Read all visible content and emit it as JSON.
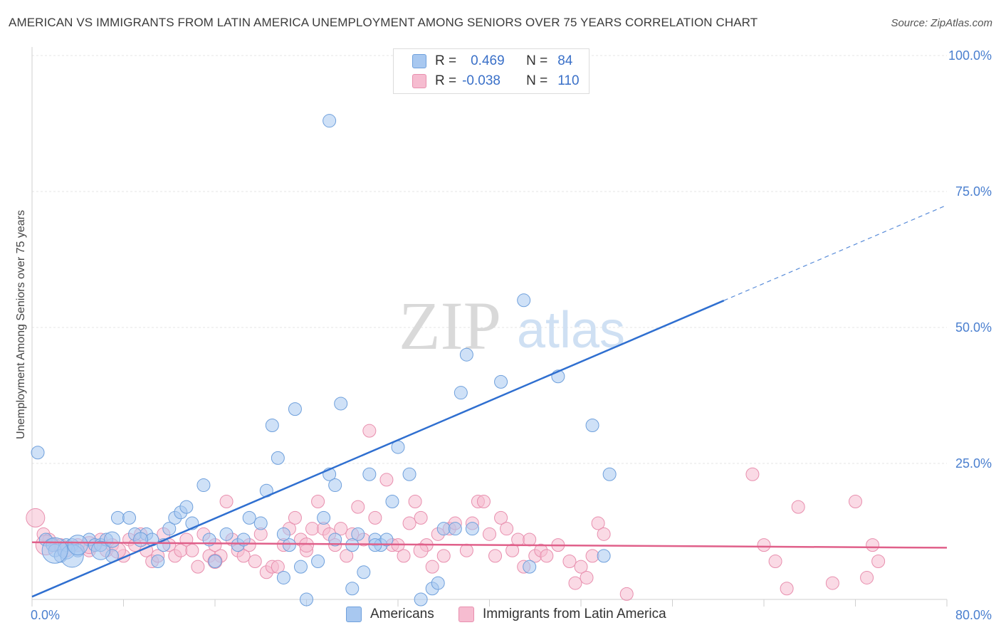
{
  "header": {
    "title": "AMERICAN VS IMMIGRANTS FROM LATIN AMERICA UNEMPLOYMENT AMONG SENIORS OVER 75 YEARS CORRELATION CHART",
    "source": "Source: ZipAtlas.com"
  },
  "watermark": {
    "zip": "ZIP",
    "atlas": "atlas"
  },
  "legend": {
    "r_label": "R =",
    "n_label": "N =",
    "americans": {
      "r": "0.469",
      "n": "84"
    },
    "immigrants": {
      "r": "-0.038",
      "n": "110"
    }
  },
  "colors": {
    "americans_fill": "#a8c8f0",
    "americans_stroke": "#6fa0dc",
    "americans_line": "#2f6fd0",
    "immigrants_fill": "#f6bcd0",
    "immigrants_stroke": "#e88fae",
    "immigrants_line": "#e0608a"
  },
  "chart_data": {
    "type": "scatter",
    "title": "AMERICAN VS IMMIGRANTS FROM LATIN AMERICA UNEMPLOYMENT AMONG SENIORS OVER 75 YEARS CORRELATION CHART",
    "xlabel": "",
    "ylabel": "Unemployment Among Seniors over 75 years",
    "xlim": [
      0,
      80
    ],
    "ylim": [
      0,
      100
    ],
    "x_tick_labels": [
      "0.0%",
      "80.0%"
    ],
    "y_ticks": [
      25,
      50,
      75,
      100
    ],
    "y_tick_labels": [
      "25.0%",
      "50.0%",
      "75.0%",
      "100.0%"
    ],
    "legend_labels": [
      "Americans",
      "Immigrants from Latin America"
    ],
    "series": [
      {
        "name": "Americans",
        "trend": {
          "x0": 0,
          "y0": 0.5,
          "x1": 80,
          "y1": 72.5,
          "solid_until_x": 60.5
        },
        "points": [
          [
            0.5,
            27
          ],
          [
            1.2,
            11
          ],
          [
            1.8,
            10
          ],
          [
            2.0,
            9
          ],
          [
            2.5,
            8
          ],
          [
            3,
            10
          ],
          [
            3.5,
            10
          ],
          [
            4,
            9
          ],
          [
            5,
            11
          ],
          [
            5.5,
            10
          ],
          [
            6,
            10
          ],
          [
            6.5,
            11
          ],
          [
            7,
            8
          ],
          [
            7.5,
            15
          ],
          [
            8.5,
            15
          ],
          [
            9,
            12
          ],
          [
            10,
            12
          ],
          [
            10.5,
            11
          ],
          [
            11,
            7
          ],
          [
            11.5,
            10
          ],
          [
            12,
            13
          ],
          [
            12.5,
            15
          ],
          [
            13,
            16
          ],
          [
            13.5,
            17
          ],
          [
            14,
            14
          ],
          [
            15,
            21
          ],
          [
            16,
            7
          ],
          [
            17,
            12
          ],
          [
            18,
            10
          ],
          [
            19,
            15
          ],
          [
            20,
            14
          ],
          [
            20.5,
            20
          ],
          [
            21,
            32
          ],
          [
            21.5,
            26
          ],
          [
            22,
            4
          ],
          [
            22.5,
            10
          ],
          [
            23,
            35
          ],
          [
            23.5,
            6
          ],
          [
            24,
            0
          ],
          [
            25,
            7
          ],
          [
            25.5,
            15
          ],
          [
            26,
            23
          ],
          [
            26.5,
            21
          ],
          [
            27,
            36
          ],
          [
            28,
            2
          ],
          [
            28.5,
            12
          ],
          [
            29,
            5
          ],
          [
            29.5,
            23
          ],
          [
            30,
            11
          ],
          [
            30.5,
            10
          ],
          [
            31,
            11
          ],
          [
            31.5,
            18
          ],
          [
            32,
            28
          ],
          [
            33,
            23
          ],
          [
            34,
            0
          ],
          [
            35,
            2
          ],
          [
            35.5,
            3
          ],
          [
            36,
            13
          ],
          [
            37,
            13
          ],
          [
            37.5,
            38
          ],
          [
            38,
            45
          ],
          [
            38.5,
            13
          ],
          [
            41,
            40
          ],
          [
            43,
            55
          ],
          [
            43.5,
            6
          ],
          [
            46,
            41
          ],
          [
            49,
            32
          ],
          [
            50,
            8
          ],
          [
            50.5,
            23
          ],
          [
            26,
            88
          ],
          [
            34,
            96
          ],
          [
            3,
            9
          ],
          [
            3.5,
            8
          ],
          [
            4,
            10
          ],
          [
            2,
            9
          ],
          [
            6,
            9
          ],
          [
            7,
            11
          ],
          [
            9.5,
            11
          ],
          [
            15.5,
            11
          ],
          [
            18.5,
            11
          ],
          [
            22,
            12
          ],
          [
            26.5,
            11
          ],
          [
            28,
            10
          ],
          [
            30,
            10
          ]
        ],
        "sizes": [
          9,
          9,
          9,
          9,
          9,
          9,
          9,
          9,
          9,
          9,
          9,
          9,
          9,
          9,
          9,
          9,
          9,
          9,
          9,
          9,
          9,
          9,
          9,
          9,
          9,
          9,
          9,
          9,
          9,
          9,
          9,
          9,
          9,
          9,
          9,
          9,
          9,
          9,
          9,
          9,
          9,
          9,
          9,
          9,
          9,
          9,
          9,
          9,
          9,
          9,
          9,
          9,
          9,
          9,
          9,
          9,
          9,
          9,
          9,
          9,
          9,
          9,
          9,
          9,
          9,
          9,
          9,
          9,
          9,
          9,
          9,
          12,
          16,
          14,
          18,
          13,
          11,
          10,
          9,
          9,
          9,
          9,
          9,
          9
        ]
      },
      {
        "name": "Immigrants from Latin America",
        "trend": {
          "x0": 0,
          "y0": 10.5,
          "x1": 80,
          "y1": 9.5
        },
        "points": [
          [
            0.3,
            15
          ],
          [
            1,
            12
          ],
          [
            1.5,
            11
          ],
          [
            2,
            10
          ],
          [
            2.5,
            10
          ],
          [
            3,
            9
          ],
          [
            4,
            10
          ],
          [
            5,
            9
          ],
          [
            5.5,
            10
          ],
          [
            6,
            11
          ],
          [
            6.5,
            9
          ],
          [
            7,
            10
          ],
          [
            8,
            8
          ],
          [
            8.5,
            11
          ],
          [
            9,
            10
          ],
          [
            9.5,
            12
          ],
          [
            10,
            9
          ],
          [
            10.5,
            7
          ],
          [
            11,
            8
          ],
          [
            11.5,
            12
          ],
          [
            12,
            10
          ],
          [
            12.5,
            8
          ],
          [
            13,
            9
          ],
          [
            13.5,
            11
          ],
          [
            14,
            9
          ],
          [
            14.5,
            6
          ],
          [
            15,
            12
          ],
          [
            15.5,
            8
          ],
          [
            16,
            10
          ],
          [
            16.5,
            8
          ],
          [
            17,
            18
          ],
          [
            17.5,
            11
          ],
          [
            18,
            9
          ],
          [
            18.5,
            8
          ],
          [
            19,
            10
          ],
          [
            19.5,
            7
          ],
          [
            20,
            12
          ],
          [
            20.5,
            5
          ],
          [
            21,
            6
          ],
          [
            21.5,
            6
          ],
          [
            22,
            10
          ],
          [
            22.5,
            13
          ],
          [
            23,
            15
          ],
          [
            23.5,
            11
          ],
          [
            24,
            9
          ],
          [
            24.5,
            13
          ],
          [
            25,
            18
          ],
          [
            25.5,
            13
          ],
          [
            26,
            12
          ],
          [
            26.5,
            10
          ],
          [
            27,
            13
          ],
          [
            27.5,
            8
          ],
          [
            28,
            12
          ],
          [
            28.5,
            17
          ],
          [
            29,
            11
          ],
          [
            29.5,
            31
          ],
          [
            30,
            15
          ],
          [
            31,
            22
          ],
          [
            31.5,
            10
          ],
          [
            32,
            10
          ],
          [
            32.5,
            8
          ],
          [
            33,
            14
          ],
          [
            33.5,
            18
          ],
          [
            34,
            15
          ],
          [
            34.5,
            10
          ],
          [
            35,
            6
          ],
          [
            35.5,
            12
          ],
          [
            36,
            8
          ],
          [
            36.5,
            13
          ],
          [
            37,
            14
          ],
          [
            38,
            9
          ],
          [
            38.5,
            14
          ],
          [
            39,
            18
          ],
          [
            39.5,
            18
          ],
          [
            40,
            12
          ],
          [
            40.5,
            8
          ],
          [
            41,
            15
          ],
          [
            41.5,
            13
          ],
          [
            42,
            9
          ],
          [
            42.5,
            11
          ],
          [
            43,
            6
          ],
          [
            43.5,
            11
          ],
          [
            44,
            8
          ],
          [
            44.5,
            9
          ],
          [
            45,
            8
          ],
          [
            46,
            10
          ],
          [
            47,
            7
          ],
          [
            47.5,
            3
          ],
          [
            48,
            6
          ],
          [
            48.5,
            4
          ],
          [
            49,
            8
          ],
          [
            49.5,
            14
          ],
          [
            50,
            12
          ],
          [
            52,
            1
          ],
          [
            63,
            23
          ],
          [
            64,
            10
          ],
          [
            65,
            7
          ],
          [
            66,
            2
          ],
          [
            67,
            17
          ],
          [
            70,
            3
          ],
          [
            72,
            18
          ],
          [
            73,
            4
          ],
          [
            73.5,
            10
          ],
          [
            74,
            7
          ],
          [
            1.2,
            10
          ],
          [
            5,
            10
          ],
          [
            7.5,
            9
          ],
          [
            16,
            7
          ],
          [
            24,
            10
          ],
          [
            34,
            9
          ]
        ],
        "sizes": [
          13,
          9,
          9,
          9,
          9,
          9,
          9,
          9,
          9,
          9,
          9,
          9,
          9,
          9,
          9,
          9,
          9,
          9,
          9,
          9,
          9,
          9,
          9,
          9,
          9,
          9,
          9,
          9,
          9,
          9,
          9,
          9,
          9,
          9,
          9,
          9,
          9,
          9,
          9,
          9,
          9,
          9,
          9,
          9,
          9,
          9,
          9,
          9,
          9,
          9,
          9,
          9,
          9,
          9,
          9,
          9,
          9,
          9,
          9,
          9,
          9,
          9,
          9,
          9,
          9,
          9,
          9,
          9,
          9,
          9,
          9,
          9,
          9,
          9,
          9,
          9,
          9,
          9,
          9,
          9,
          9,
          9,
          9,
          9,
          9,
          9,
          9,
          9,
          9,
          9,
          9,
          9,
          9,
          9,
          9,
          9,
          9,
          9,
          9,
          9,
          9,
          9,
          9,
          9,
          14,
          12,
          11,
          10,
          10,
          10
        ]
      }
    ]
  }
}
